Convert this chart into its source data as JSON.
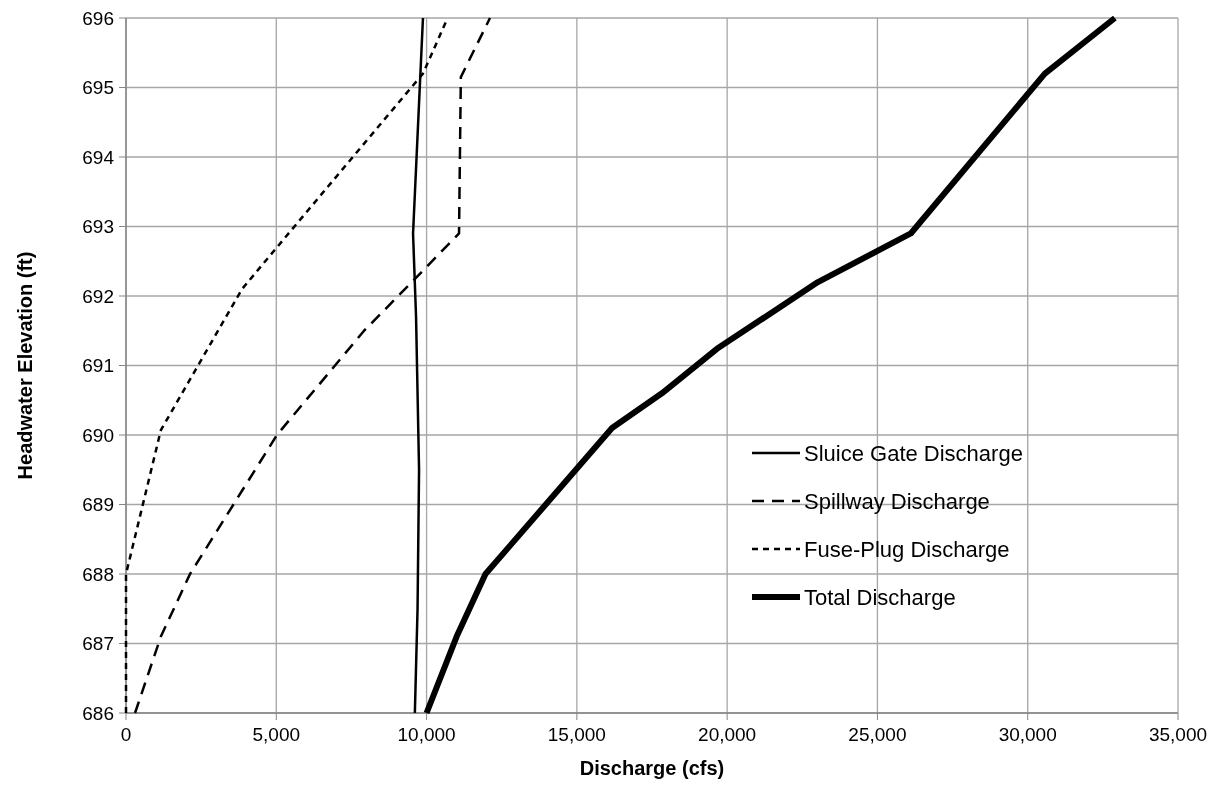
{
  "chart_data": {
    "type": "line",
    "xlabel": "Discharge (cfs)",
    "ylabel": "Headwater Elevation (ft)",
    "xlim": [
      0,
      35000
    ],
    "xticks": [
      {
        "value": 0,
        "label": "0"
      },
      {
        "value": 5000,
        "label": "5,000"
      },
      {
        "value": 10000,
        "label": "10,000"
      },
      {
        "value": 15000,
        "label": "15,000"
      },
      {
        "value": 20000,
        "label": "20,000"
      },
      {
        "value": 25000,
        "label": "25,000"
      },
      {
        "value": 30000,
        "label": "30,000"
      },
      {
        "value": 35000,
        "label": "35,000"
      }
    ],
    "ylim": [
      686,
      696
    ],
    "yticks": [
      686,
      687,
      688,
      689,
      690,
      691,
      692,
      693,
      694,
      695,
      696
    ],
    "grid": true,
    "legend": "bottom right",
    "marker": "none",
    "series": [
      {
        "name": "Sluice Gate Discharge",
        "color": "#000000",
        "line_style": "solid",
        "x": [
          9610,
          9700,
          9750,
          9650,
          9550,
          9880
        ],
        "values": [
          686,
          687.5,
          689.5,
          691.7,
          692.9,
          696
        ]
      },
      {
        "name": "Spillway Discharge",
        "color": "#000000",
        "line_style": "dashed",
        "x": [
          300,
          1160,
          2130,
          5020,
          7920,
          9510,
          11080,
          11140,
          12110
        ],
        "values": [
          686,
          687.1,
          688,
          690,
          691.5,
          692.2,
          692.9,
          695.15,
          696
        ]
      },
      {
        "name": "Fuse-Plug Discharge",
        "color": "#000000",
        "line_style": "dotted",
        "x": [
          0,
          0,
          1160,
          3860,
          5020,
          9880,
          10700
        ],
        "values": [
          686,
          688,
          690.07,
          692.1,
          692.7,
          695.2,
          696
        ]
      },
      {
        "name": "Total Discharge",
        "color": "#000000",
        "line_style": "solid",
        "x": [
          10000,
          11000,
          11960,
          16170,
          17830,
          19660,
          23020,
          26110,
          30570,
          32900
        ],
        "values": [
          686,
          687.1,
          688,
          690.1,
          690.6,
          691.24,
          692.2,
          692.9,
          695.2,
          696
        ]
      }
    ]
  }
}
